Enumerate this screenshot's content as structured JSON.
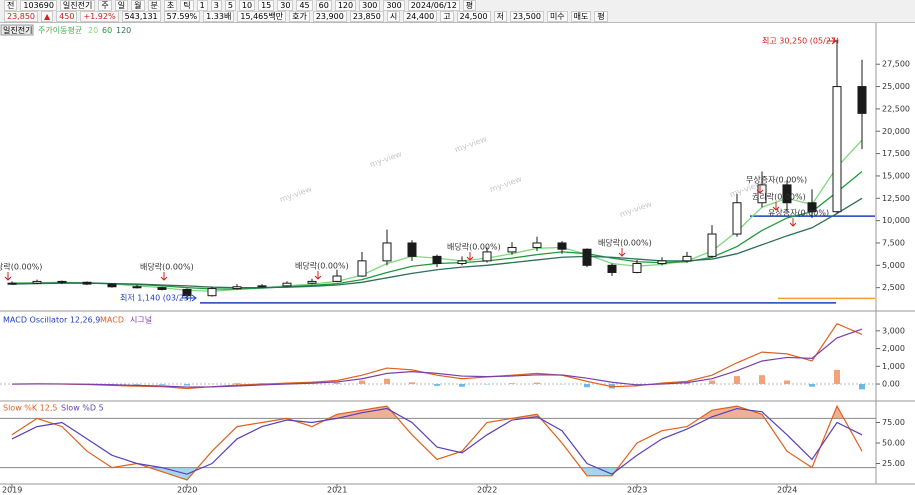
{
  "toolbar": {
    "row1": [
      "전",
      "103690",
      "일진전기",
      "주",
      "일",
      "월",
      "분",
      "초",
      "틱",
      "1",
      "3",
      "5",
      "10",
      "15",
      "30",
      "45",
      "60",
      "120",
      "300",
      "300",
      "2024/06/12",
      "평"
    ],
    "row2": [
      "23,850",
      "▲",
      "450",
      "+1.92%",
      "543,131",
      "57.59%",
      "1.33배",
      "15,465백만",
      "호가",
      "23,900",
      "23,850",
      "시",
      "24,400",
      "고",
      "24,500",
      "저",
      "23,500",
      "미수",
      "매도",
      "평"
    ]
  },
  "chart_data": [
    {
      "type": "candlestick",
      "title": "일진전기",
      "legend_title": "주가이동평균",
      "watermark": "my-view",
      "candle_color": "#1a1a1a",
      "categories": [
        "2019",
        null,
        null,
        null,
        null,
        null,
        null,
        "2020",
        null,
        null,
        null,
        null,
        null,
        "2021",
        null,
        null,
        null,
        null,
        null,
        "2022",
        null,
        null,
        null,
        null,
        null,
        "2023",
        null,
        null,
        null,
        null,
        null,
        "2024",
        null,
        null,
        null
      ],
      "open": [
        2900,
        3000,
        3200,
        3100,
        2900,
        2600,
        2500,
        2300,
        1600,
        2400,
        2600,
        2700,
        3000,
        3200,
        3800,
        5500,
        7500,
        6000,
        5200,
        5500,
        6500,
        7000,
        7500,
        6800,
        5000,
        4200,
        5200,
        5500,
        6000,
        8500,
        12000,
        14000,
        12000,
        11000,
        25000
      ],
      "high": [
        3200,
        3400,
        3300,
        3200,
        3000,
        2800,
        2600,
        2400,
        2600,
        2900,
        2900,
        3200,
        3500,
        4500,
        6500,
        9000,
        7800,
        6200,
        6000,
        7000,
        7600,
        8200,
        7700,
        6900,
        5200,
        5600,
        5900,
        6500,
        9500,
        13000,
        15500,
        14500,
        13500,
        30250,
        28000
      ],
      "low": [
        2800,
        2900,
        2900,
        2800,
        2500,
        2400,
        2200,
        1140,
        1500,
        2300,
        2500,
        2600,
        2900,
        3100,
        3700,
        5000,
        5500,
        4800,
        5000,
        5300,
        6200,
        6600,
        6300,
        4800,
        3800,
        4100,
        5000,
        5300,
        5900,
        8200,
        11500,
        11000,
        10300,
        10800,
        18000
      ],
      "close": [
        3000,
        3200,
        3100,
        2900,
        2600,
        2500,
        2300,
        1600,
        2400,
        2600,
        2700,
        3000,
        3200,
        3800,
        5500,
        7500,
        6000,
        5200,
        5500,
        6500,
        7000,
        7500,
        6800,
        5000,
        4200,
        5200,
        5500,
        6000,
        8500,
        12000,
        14000,
        12000,
        11000,
        25000,
        22000
      ],
      "series": [
        {
          "name": "20",
          "color": "#7fd87f",
          "values": [
            3000,
            3050,
            3100,
            3050,
            2900,
            2700,
            2500,
            2200,
            2100,
            2300,
            2500,
            2700,
            2900,
            3200,
            3900,
            5200,
            6000,
            5800,
            5500,
            5800,
            6300,
            6900,
            7000,
            6200,
            5200,
            4900,
            5100,
            5500,
            6600,
            8800,
            11500,
            12500,
            11800,
            16000,
            19000
          ]
        },
        {
          "name": "60",
          "color": "#1e9a3c",
          "values": [
            3000,
            3000,
            3050,
            3050,
            2950,
            2850,
            2700,
            2500,
            2350,
            2350,
            2450,
            2600,
            2750,
            2950,
            3400,
            4200,
            4900,
            5200,
            5300,
            5500,
            5800,
            6200,
            6500,
            6300,
            5800,
            5400,
            5300,
            5400,
            5900,
            7100,
            8900,
            10300,
            11000,
            13200,
            15500
          ]
        },
        {
          "name": "120",
          "color": "#2e6e5a",
          "values": [
            2900,
            2950,
            3000,
            3000,
            2950,
            2900,
            2800,
            2700,
            2550,
            2500,
            2500,
            2550,
            2650,
            2800,
            3100,
            3600,
            4100,
            4500,
            4800,
            5000,
            5300,
            5600,
            5900,
            6000,
            5900,
            5700,
            5500,
            5500,
            5700,
            6300,
            7300,
            8300,
            9200,
            10800,
            12500
          ]
        }
      ],
      "ylim": [
        0,
        32000
      ],
      "yticks": [
        {
          "value": 2500,
          "label": "2,500"
        },
        {
          "value": 5000,
          "label": "5,000"
        },
        {
          "value": 7500,
          "label": "7,500"
        },
        {
          "value": 10000,
          "label": "10,000"
        },
        {
          "value": 12500,
          "label": "12,500"
        },
        {
          "value": 15000,
          "label": "15,000"
        },
        {
          "value": 17500,
          "label": "17,500"
        },
        {
          "value": 20000,
          "label": "20,000"
        },
        {
          "value": 22500,
          "label": "22,500"
        },
        {
          "value": 25000,
          "label": "25,000"
        },
        {
          "value": 27500,
          "label": "27,500"
        }
      ],
      "levels": [
        {
          "value": 10500,
          "color": "#1f3fbf"
        },
        {
          "value": 800,
          "color": "#1f3fbf"
        },
        {
          "value": 1300,
          "color": "#f0a030"
        }
      ],
      "high_label": "최고 30,250 (05/27)",
      "low_label": "최저 1,140 (03/23)",
      "events": [
        "당락(0.00%)",
        "배당락(0.00%)",
        "배당락(0.00%)",
        "배당락(0.00%)",
        "배당락(0.00%)",
        "무상증자(0.00%)",
        "권리락(0.00%)",
        "유상증자(0.00%)"
      ]
    },
    {
      "type": "macd",
      "title": "MACD Oscillator 12,26,9",
      "series": [
        {
          "name": "MACD",
          "color": "#e0601e",
          "values": [
            0,
            10,
            0,
            -30,
            -80,
            -120,
            -150,
            -250,
            -150,
            -60,
            0,
            50,
            100,
            200,
            500,
            900,
            800,
            500,
            300,
            400,
            500,
            600,
            500,
            150,
            -150,
            -100,
            50,
            150,
            500,
            1200,
            1800,
            1700,
            1300,
            3400,
            2800
          ]
        },
        {
          "name": "시그널",
          "color": "#7a3fa8",
          "values": [
            0,
            5,
            5,
            -10,
            -40,
            -80,
            -110,
            -170,
            -160,
            -110,
            -50,
            0,
            50,
            120,
            300,
            600,
            700,
            600,
            450,
            420,
            450,
            520,
            510,
            330,
            100,
            -50,
            0,
            80,
            300,
            750,
            1300,
            1500,
            1450,
            2600,
            3100
          ]
        }
      ],
      "oscillator": {
        "up_color": "#f2a27a",
        "down_color": "#6ab8e8",
        "values": [
          0,
          5,
          -5,
          -20,
          -40,
          -40,
          -40,
          -80,
          10,
          50,
          50,
          50,
          50,
          80,
          200,
          300,
          100,
          -100,
          -150,
          -20,
          50,
          80,
          -10,
          -180,
          -250,
          -50,
          50,
          70,
          200,
          450,
          500,
          200,
          -150,
          800,
          -300
        ]
      },
      "ylim": [
        -900,
        3950
      ],
      "yticks": [
        {
          "value": 0,
          "label": "0.00"
        },
        {
          "value": 1000,
          "label": "1,000"
        },
        {
          "value": 2000,
          "label": "2,000"
        },
        {
          "value": 3000,
          "label": "3,000"
        }
      ]
    },
    {
      "type": "stochastic",
      "series": [
        {
          "name": "Slow %K 12,5",
          "color": "#e0601e",
          "values": [
            60,
            80,
            70,
            40,
            20,
            25,
            15,
            5,
            40,
            70,
            75,
            80,
            70,
            85,
            90,
            95,
            60,
            30,
            40,
            75,
            80,
            85,
            50,
            10,
            10,
            50,
            65,
            70,
            90,
            95,
            85,
            40,
            20,
            95,
            40
          ]
        },
        {
          "name": "Slow %D 5",
          "color": "#5a3fb8",
          "values": [
            55,
            70,
            75,
            55,
            35,
            25,
            20,
            12,
            25,
            55,
            70,
            78,
            75,
            80,
            87,
            92,
            75,
            45,
            38,
            60,
            78,
            82,
            65,
            25,
            12,
            35,
            55,
            67,
            82,
            92,
            88,
            60,
            30,
            75,
            60
          ]
        }
      ],
      "levels": [
        80,
        20
      ],
      "high_fill": "#e8906a",
      "low_fill": "#7cc4e8",
      "ylim": [
        0,
        100
      ],
      "yticks": [
        {
          "value": 25,
          "label": "25.00"
        },
        {
          "value": 50,
          "label": "50.00"
        },
        {
          "value": 75,
          "label": "75.00"
        }
      ]
    }
  ]
}
